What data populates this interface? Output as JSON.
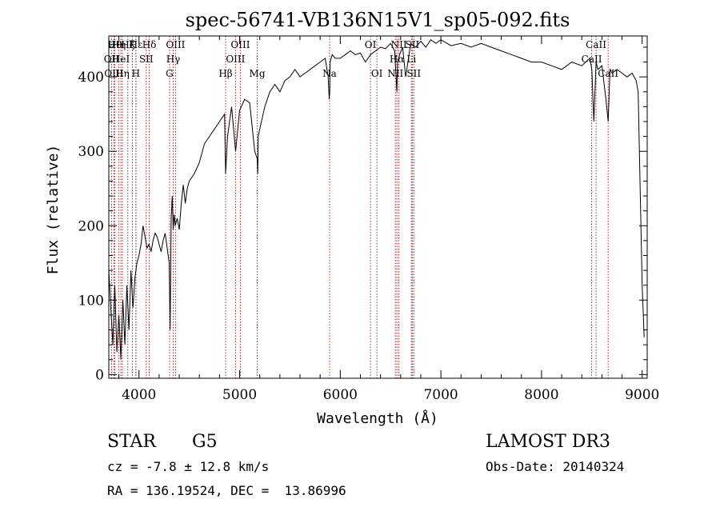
{
  "chart_data": {
    "type": "line",
    "title": "spec-56741-VB136N15V1_sp05-092.fits",
    "xlabel": "Wavelength (Å)",
    "ylabel": "Flux (relative)",
    "xlim": [
      3700,
      9050
    ],
    "ylim": [
      -5,
      455
    ],
    "x_ticks": [
      4000,
      5000,
      6000,
      7000,
      8000,
      9000
    ],
    "y_ticks": [
      0,
      100,
      200,
      300,
      400
    ],
    "series": [
      {
        "name": "flux",
        "x": [
          3700,
          3720,
          3740,
          3760,
          3780,
          3800,
          3820,
          3840,
          3860,
          3880,
          3900,
          3920,
          3940,
          3960,
          3980,
          4000,
          4020,
          4040,
          4060,
          4080,
          4100,
          4120,
          4140,
          4160,
          4180,
          4200,
          4220,
          4240,
          4260,
          4280,
          4300,
          4310,
          4320,
          4330,
          4340,
          4350,
          4360,
          4380,
          4400,
          4420,
          4440,
          4460,
          4480,
          4500,
          4550,
          4600,
          4650,
          4700,
          4750,
          4800,
          4850,
          4861,
          4880,
          4920,
          4960,
          5000,
          5050,
          5100,
          5150,
          5175,
          5180,
          5185,
          5200,
          5250,
          5300,
          5350,
          5400,
          5450,
          5500,
          5550,
          5600,
          5650,
          5700,
          5750,
          5800,
          5850,
          5880,
          5890,
          5896,
          5900,
          5920,
          5950,
          6000,
          6050,
          6100,
          6150,
          6200,
          6250,
          6300,
          6350,
          6400,
          6450,
          6500,
          6540,
          6555,
          6563,
          6570,
          6590,
          6620,
          6650,
          6700,
          6750,
          6800,
          6850,
          6900,
          6950,
          7000,
          7100,
          7200,
          7300,
          7400,
          7500,
          7600,
          7700,
          7800,
          7900,
          8000,
          8100,
          8200,
          8300,
          8400,
          8480,
          8500,
          8520,
          8542,
          8560,
          8600,
          8640,
          8662,
          8680,
          8700,
          8750,
          8800,
          8850,
          8900,
          8940,
          8960,
          8980,
          9000,
          9020
        ],
        "y": [
          140,
          90,
          40,
          120,
          30,
          80,
          20,
          100,
          40,
          120,
          60,
          140,
          90,
          130,
          150,
          160,
          175,
          200,
          185,
          170,
          175,
          165,
          180,
          190,
          185,
          175,
          165,
          180,
          190,
          170,
          150,
          60,
          210,
          240,
          195,
          215,
          200,
          210,
          195,
          230,
          255,
          230,
          250,
          260,
          270,
          285,
          310,
          320,
          330,
          340,
          350,
          270,
          320,
          360,
          300,
          355,
          370,
          365,
          300,
          290,
          270,
          320,
          330,
          360,
          380,
          390,
          380,
          395,
          400,
          410,
          400,
          405,
          410,
          415,
          420,
          425,
          400,
          370,
          380,
          420,
          430,
          425,
          425,
          430,
          435,
          430,
          432,
          420,
          430,
          435,
          440,
          438,
          445,
          435,
          400,
          380,
          420,
          430,
          440,
          400,
          445,
          440,
          448,
          440,
          450,
          445,
          450,
          442,
          445,
          440,
          445,
          440,
          435,
          430,
          425,
          420,
          420,
          415,
          410,
          420,
          415,
          425,
          410,
          340,
          420,
          410,
          415,
          370,
          340,
          410,
          405,
          410,
          405,
          400,
          405,
          395,
          380,
          250,
          120,
          50
        ],
        "color": "#000000"
      }
    ],
    "lines": [
      {
        "wavelength": 3727,
        "label": "OII",
        "row": 1
      },
      {
        "wavelength": 3750,
        "label": "OIII",
        "row": 2
      },
      {
        "wavelength": 3760,
        "label": "Hθ",
        "row": 0
      },
      {
        "wavelength": 3798,
        "label": "Hη",
        "row": 0
      },
      {
        "wavelength": 3820,
        "label": "HeI",
        "row": 1
      },
      {
        "wavelength": 3835,
        "label": "Hη",
        "row": 2
      },
      {
        "wavelength": 3889,
        "label": "Hζ",
        "row": 0
      },
      {
        "wavelength": 3934,
        "label": "K",
        "row": 0
      },
      {
        "wavelength": 3969,
        "label": "H",
        "row": 2
      },
      {
        "wavelength": 3970,
        "label": "Hε",
        "row": 0
      },
      {
        "wavelength": 4072,
        "label": "SII",
        "row": 1
      },
      {
        "wavelength": 4102,
        "label": "Hδ",
        "row": 0
      },
      {
        "wavelength": 4304,
        "label": "G",
        "row": 2
      },
      {
        "wavelength": 4340,
        "label": "Hγ",
        "row": 1
      },
      {
        "wavelength": 4363,
        "label": "OIII",
        "row": 0
      },
      {
        "wavelength": 4861,
        "label": "Hβ",
        "row": 2
      },
      {
        "wavelength": 4959,
        "label": "OIII",
        "row": 1
      },
      {
        "wavelength": 5007,
        "label": "OIII",
        "row": 0
      },
      {
        "wavelength": 5175,
        "label": "Mg",
        "row": 2
      },
      {
        "wavelength": 5894,
        "label": "Na",
        "row": 2
      },
      {
        "wavelength": 6300,
        "label": "OI",
        "row": 0
      },
      {
        "wavelength": 6364,
        "label": "OI",
        "row": 2
      },
      {
        "wavelength": 6548,
        "label": "NII",
        "row": 2
      },
      {
        "wavelength": 6563,
        "label": "Hα",
        "row": 1
      },
      {
        "wavelength": 6583,
        "label": "NII",
        "row": 0
      },
      {
        "wavelength": 6707,
        "label": "Li",
        "row": 1
      },
      {
        "wavelength": 6716,
        "label": "SII",
        "row": 0
      },
      {
        "wavelength": 6731,
        "label": "SII",
        "row": 2
      },
      {
        "wavelength": 8498,
        "label": "CaII",
        "row": 1
      },
      {
        "wavelength": 8542,
        "label": "CaII",
        "row": 0
      },
      {
        "wavelength": 8662,
        "label": "CaII",
        "row": 2
      }
    ],
    "line_color": "#b22222"
  },
  "info": {
    "class_label": "STAR",
    "subclass_label": "G5",
    "survey_label": "LAMOST DR3",
    "cz_text": "cz = -7.8 ± 12.8 km/s",
    "obs_date_text": "Obs-Date: 20140324",
    "radec_text": "RA = 136.19524, DEC =  13.86996"
  }
}
